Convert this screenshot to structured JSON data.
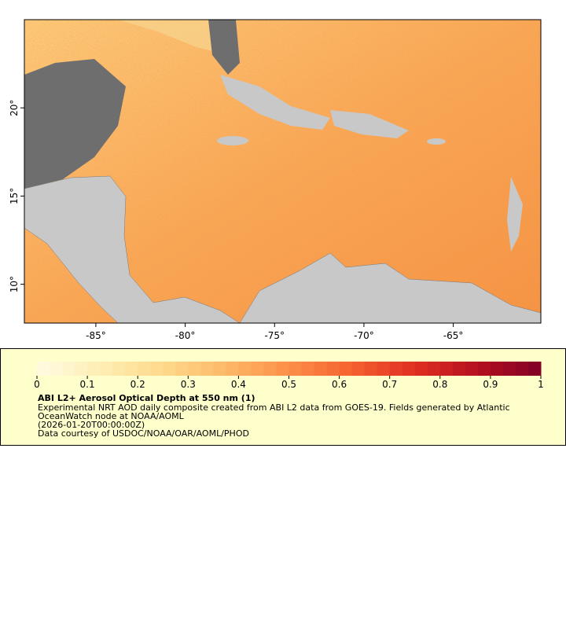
{
  "map": {
    "xlim": [
      -89,
      -60.1
    ],
    "ylim": [
      7.8,
      25
    ],
    "xticks": [
      {
        "value": -85,
        "label": "-85°"
      },
      {
        "value": -80,
        "label": "-80°"
      },
      {
        "value": -75,
        "label": "-75°"
      },
      {
        "value": -70,
        "label": "-70°"
      },
      {
        "value": -65,
        "label": "-65°"
      }
    ],
    "yticks": [
      {
        "value": 10,
        "label": "10°"
      },
      {
        "value": 15,
        "label": "15°"
      },
      {
        "value": 20,
        "label": "20°"
      }
    ]
  },
  "legend": {
    "colorbar": {
      "lim": [
        0,
        1
      ],
      "ticks": [
        0,
        0.1,
        0.2,
        0.3,
        0.4,
        0.5,
        0.6,
        0.7,
        0.8,
        0.9,
        1
      ],
      "colors": [
        "#fffbe3",
        "#feeeb4",
        "#fed98a",
        "#fdb968",
        "#fc8f48",
        "#f4612f",
        "#e02f22",
        "#b4101f",
        "#800026"
      ]
    },
    "title": "ABI L2+ Aerosol Optical Depth at 550 nm (1)",
    "lines": [
      "Experimental NRT AOD daily composite created from ABI L2 data from GOES-19. Fields generated by Atlantic",
      "OceanWatch node at NOAA/AOML",
      "(2026-01-20T00:00:00Z)",
      "Data courtesy of USDOC/NOAA/OAR/AOML/PHOD"
    ]
  }
}
